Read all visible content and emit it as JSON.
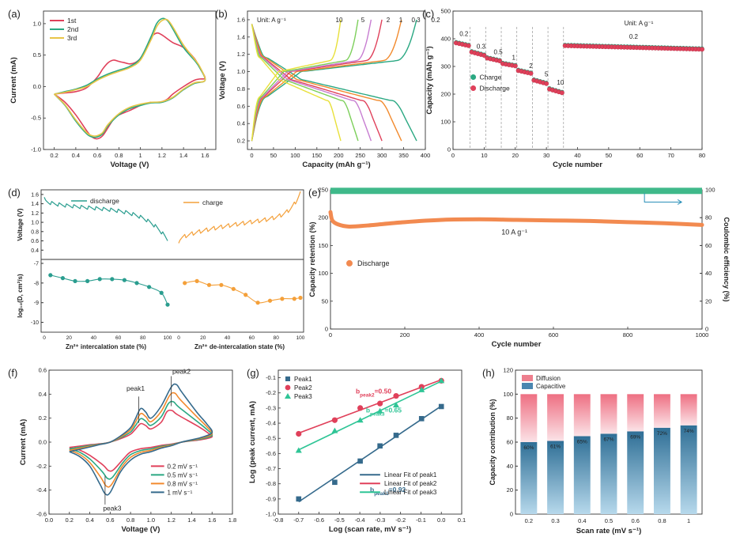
{
  "figure": {
    "panels": [
      {
        "id": "a",
        "letter": "(a)"
      },
      {
        "id": "b",
        "letter": "(b)"
      },
      {
        "id": "c",
        "letter": "(c)"
      },
      {
        "id": "d",
        "letter": "(d)"
      },
      {
        "id": "e",
        "letter": "(e)"
      },
      {
        "id": "f",
        "letter": "(f)"
      },
      {
        "id": "g",
        "letter": "(g)"
      },
      {
        "id": "h",
        "letter": "(h)"
      }
    ]
  },
  "chart_data": [
    {
      "id": "a",
      "type": "line",
      "xlabel": "Voltage (V)",
      "ylabel": "Current (mA)",
      "xlim": [
        0.1,
        1.7
      ],
      "ylim": [
        -1.0,
        1.2
      ],
      "xticks": [
        0.2,
        0.4,
        0.6,
        0.8,
        1.0,
        1.2,
        1.4,
        1.6
      ],
      "yticks": [
        -1.0,
        -0.5,
        0.0,
        0.5,
        1.0
      ],
      "legend_position": "top-left",
      "series": [
        {
          "name": "1st",
          "color": "#e0405a",
          "x": [
            0.2,
            0.3,
            0.4,
            0.5,
            0.55,
            0.6,
            0.65,
            0.7,
            0.75,
            0.8,
            0.9,
            1.0,
            1.05,
            1.1,
            1.15,
            1.2,
            1.25,
            1.3,
            1.4,
            1.5,
            1.55,
            1.6,
            1.55,
            1.5,
            1.4,
            1.3,
            1.2,
            1.15,
            1.1,
            1.05,
            1.0,
            0.95,
            0.9,
            0.85,
            0.8,
            0.75,
            0.7,
            0.65,
            0.6,
            0.5,
            0.4,
            0.3,
            0.2
          ],
          "y": [
            -0.12,
            -0.25,
            -0.45,
            -0.7,
            -0.8,
            -0.83,
            -0.78,
            -0.65,
            -0.52,
            -0.45,
            -0.38,
            -0.3,
            -0.27,
            -0.25,
            -0.25,
            -0.24,
            -0.2,
            -0.12,
            0.0,
            0.1,
            0.12,
            0.14,
            0.3,
            0.45,
            0.62,
            0.7,
            0.82,
            0.85,
            0.78,
            0.6,
            0.45,
            0.38,
            0.36,
            0.38,
            0.4,
            0.42,
            0.38,
            0.28,
            0.15,
            -0.02,
            -0.08,
            -0.1,
            -0.12
          ]
        },
        {
          "name": "2nd",
          "color": "#2aa882",
          "x": [
            0.2,
            0.3,
            0.4,
            0.5,
            0.55,
            0.6,
            0.65,
            0.7,
            0.8,
            0.9,
            1.0,
            1.1,
            1.2,
            1.3,
            1.4,
            1.5,
            1.6,
            1.55,
            1.5,
            1.4,
            1.3,
            1.25,
            1.2,
            1.15,
            1.1,
            1.0,
            0.9,
            0.8,
            0.7,
            0.6,
            0.5,
            0.4,
            0.3,
            0.2
          ],
          "y": [
            -0.12,
            -0.3,
            -0.55,
            -0.75,
            -0.8,
            -0.8,
            -0.75,
            -0.62,
            -0.45,
            -0.35,
            -0.3,
            -0.26,
            -0.25,
            -0.18,
            -0.05,
            0.05,
            0.1,
            0.3,
            0.42,
            0.62,
            0.92,
            1.05,
            1.08,
            1.0,
            0.8,
            0.45,
            0.32,
            0.26,
            0.2,
            0.12,
            0.02,
            -0.04,
            -0.08,
            -0.12
          ]
        },
        {
          "name": "3rd",
          "color": "#e8c547",
          "x": [
            0.2,
            0.3,
            0.4,
            0.5,
            0.55,
            0.6,
            0.65,
            0.7,
            0.8,
            0.9,
            1.0,
            1.1,
            1.2,
            1.3,
            1.4,
            1.5,
            1.6,
            1.55,
            1.5,
            1.4,
            1.3,
            1.25,
            1.2,
            1.15,
            1.1,
            1.0,
            0.9,
            0.8,
            0.7,
            0.6,
            0.5,
            0.4,
            0.3,
            0.2
          ],
          "y": [
            -0.12,
            -0.29,
            -0.53,
            -0.73,
            -0.78,
            -0.78,
            -0.73,
            -0.6,
            -0.43,
            -0.33,
            -0.28,
            -0.25,
            -0.24,
            -0.17,
            -0.04,
            0.06,
            0.1,
            0.32,
            0.44,
            0.66,
            0.95,
            1.06,
            1.05,
            0.95,
            0.75,
            0.42,
            0.3,
            0.24,
            0.18,
            0.1,
            0.0,
            -0.05,
            -0.09,
            -0.12
          ]
        }
      ]
    },
    {
      "id": "b",
      "type": "line",
      "xlabel": "Capacity (mAh g⁻¹)",
      "ylabel": "Voltage (V)",
      "xlim": [
        -10,
        400
      ],
      "ylim": [
        0.1,
        1.7
      ],
      "xticks": [
        0,
        50,
        100,
        150,
        200,
        250,
        300,
        350,
        400
      ],
      "yticks": [
        0.2,
        0.4,
        0.6,
        0.8,
        1.0,
        1.2,
        1.4,
        1.6
      ],
      "unit_note": "Unit: A g⁻¹",
      "rate_labels": [
        "10",
        "5",
        "2",
        "1",
        "0.3",
        "0.2"
      ],
      "series": [
        {
          "name": "0.2",
          "color": "#2aa882",
          "capacity": 380
        },
        {
          "name": "0.3",
          "color": "#f28a2e",
          "capacity": 345
        },
        {
          "name": "1",
          "color": "#e0405a",
          "capacity": 300
        },
        {
          "name": "2",
          "color": "#c77dd1",
          "capacity": 275
        },
        {
          "name": "5",
          "color": "#7ccf5a",
          "capacity": 245
        },
        {
          "name": "10",
          "color": "#e8e03a",
          "capacity": 205
        }
      ]
    },
    {
      "id": "c",
      "type": "scatter",
      "xlabel": "Cycle number",
      "ylabel": "Capacity (mAh g⁻¹)",
      "xlim": [
        0,
        80
      ],
      "ylim": [
        0,
        500
      ],
      "xticks": [
        0,
        10,
        20,
        30,
        40,
        50,
        60,
        70,
        80
      ],
      "yticks": [
        0,
        100,
        200,
        300,
        400,
        500
      ],
      "unit_note": "Unit: A g⁻¹",
      "rate_labels": [
        {
          "text": "0.2",
          "x": 3.5,
          "y": 410
        },
        {
          "text": "0.3",
          "x": 9,
          "y": 365
        },
        {
          "text": "0.5",
          "x": 14.5,
          "y": 345
        },
        {
          "text": "1",
          "x": 19.5,
          "y": 325
        },
        {
          "text": "2",
          "x": 25,
          "y": 295
        },
        {
          "text": "5",
          "x": 30,
          "y": 265
        },
        {
          "text": "10",
          "x": 34.5,
          "y": 235
        },
        {
          "text": "0.2",
          "x": 58,
          "y": 400
        }
      ],
      "dividers": [
        5.5,
        10.5,
        15.5,
        20.5,
        25.5,
        30.5,
        35.5
      ],
      "legend": [
        "Charge",
        "Discharge"
      ],
      "legend_position": "middle-left",
      "charge_color": "#2aa882",
      "discharge_color": "#e0405a",
      "segments": [
        {
          "start": 1,
          "end": 5,
          "from": 385,
          "to": 375
        },
        {
          "start": 6,
          "end": 10,
          "from": 352,
          "to": 340
        },
        {
          "start": 11,
          "end": 15,
          "from": 330,
          "to": 320
        },
        {
          "start": 16,
          "end": 20,
          "from": 310,
          "to": 302
        },
        {
          "start": 21,
          "end": 25,
          "from": 285,
          "to": 275
        },
        {
          "start": 26,
          "end": 30,
          "from": 250,
          "to": 238
        },
        {
          "start": 31,
          "end": 35,
          "from": 218,
          "to": 205
        },
        {
          "start": 36,
          "end": 80,
          "from": 375,
          "to": 362
        }
      ]
    },
    {
      "id": "d",
      "type": "line",
      "top": {
        "ylabel": "Voltage (V)",
        "ylim": [
          0.2,
          1.7
        ],
        "yticks": [
          0.4,
          0.6,
          0.8,
          1.0,
          1.2,
          1.4,
          1.6
        ],
        "legend": [
          "discharge",
          "charge"
        ],
        "discharge_color": "#2a9d8f",
        "charge_color": "#f4a03a"
      },
      "bottom": {
        "ylabel": "log₁₀(D, cm²/s)",
        "ylim": [
          -10.5,
          -6.8
        ],
        "yticks": [
          -10,
          -9,
          -8,
          -7
        ],
        "discharge": {
          "x": [
            5,
            15,
            25,
            35,
            45,
            55,
            65,
            75,
            85,
            95,
            100
          ],
          "y": [
            -7.6,
            -7.75,
            -7.9,
            -7.9,
            -7.8,
            -7.8,
            -7.85,
            -8.0,
            -8.2,
            -8.5,
            -9.1
          ]
        },
        "charge": {
          "x": [
            5,
            15,
            25,
            35,
            45,
            55,
            65,
            75,
            85,
            95,
            100
          ],
          "y": [
            -8.0,
            -7.9,
            -8.1,
            -8.1,
            -8.3,
            -8.6,
            -9.0,
            -8.9,
            -8.8,
            -8.8,
            -8.75
          ]
        }
      },
      "xlabel_left": "Zn²⁺ intercalation state (%)",
      "xlabel_right": "Zn²⁺ de-intercalation state (%)",
      "xticks": [
        0,
        20,
        40,
        60,
        80,
        100
      ]
    },
    {
      "id": "e",
      "type": "scatter",
      "xlabel": "Cycle number",
      "ylabel": "Capacity retention (%)",
      "ylabel2": "Coulombic efficiency (%)",
      "xlim": [
        0,
        1000
      ],
      "ylim": [
        0,
        250
      ],
      "ylim2": [
        0,
        100
      ],
      "xticks": [
        0,
        200,
        400,
        600,
        800,
        1000
      ],
      "yticks": [
        0,
        50,
        100,
        150,
        200,
        250
      ],
      "yticks2": [
        0,
        20,
        40,
        60,
        80,
        100
      ],
      "annotation": "10 A g⁻¹",
      "legend": [
        "Discharge"
      ],
      "legend_position": "upper-left",
      "discharge_color": "#f28a50",
      "ce_color": "#3fb98a",
      "discharge": {
        "x": [
          0,
          5,
          20,
          50,
          100,
          200,
          300,
          400,
          500,
          600,
          700,
          800,
          900,
          1000
        ],
        "y": [
          210,
          195,
          188,
          184,
          186,
          192,
          196,
          197,
          196,
          195,
          194,
          192,
          190,
          187
        ]
      },
      "ce": {
        "x": [
          0,
          1000
        ],
        "y": [
          99,
          99
        ]
      }
    },
    {
      "id": "f",
      "type": "line",
      "xlabel": "Voltage (V)",
      "ylabel": "Current (mA)",
      "xlim": [
        0,
        1.8
      ],
      "ylim": [
        -0.6,
        0.6
      ],
      "xticks": [
        0.0,
        0.2,
        0.4,
        0.6,
        0.8,
        1.0,
        1.2,
        1.4,
        1.6,
        1.8
      ],
      "yticks": [
        -0.6,
        -0.4,
        -0.2,
        0.0,
        0.2,
        0.4,
        0.6
      ],
      "annotations": [
        "peak1",
        "peak2",
        "peak3"
      ],
      "legend_position": "lower-right",
      "series": [
        {
          "name": "0.2 mV s⁻¹",
          "color": "#e0405a",
          "scale": 0.55
        },
        {
          "name": "0.5 mV s⁻¹",
          "color": "#2aa882",
          "scale": 0.7
        },
        {
          "name": "0.8 mV s⁻¹",
          "color": "#f28a2e",
          "scale": 0.85
        },
        {
          "name": "1   mV s⁻¹",
          "color": "#356a8c",
          "scale": 1.0
        }
      ]
    },
    {
      "id": "g",
      "type": "scatter",
      "xlabel": "Log (scan rate, mV s⁻¹)",
      "ylabel": "Log (peak current, mA)",
      "xlim": [
        -0.8,
        0.1
      ],
      "ylim": [
        -1.0,
        -0.05
      ],
      "xticks": [
        -0.8,
        -0.7,
        -0.6,
        -0.5,
        -0.4,
        -0.3,
        -0.2,
        -0.1,
        0.0,
        0.1
      ],
      "yticks": [
        -1.0,
        -0.9,
        -0.8,
        -0.7,
        -0.6,
        -0.5,
        -0.4,
        -0.3,
        -0.2,
        -0.1
      ],
      "legend_position": "top-left",
      "fit_legend": [
        "Linear Fit of peak1",
        "Linear Fit of peak2",
        "Linear Fit of peak3"
      ],
      "x": [
        -0.7,
        -0.523,
        -0.398,
        -0.301,
        -0.222,
        -0.097,
        0.0
      ],
      "series": [
        {
          "name": "Peak1",
          "color": "#356a8c",
          "marker": "square",
          "y": [
            -0.9,
            -0.79,
            -0.65,
            -0.55,
            -0.48,
            -0.37,
            -0.29
          ],
          "b_label": "b",
          "b_sub": "peak1",
          "b_value": "=0.92"
        },
        {
          "name": "Peak2",
          "color": "#e0405a",
          "marker": "circle",
          "y": [
            -0.47,
            -0.38,
            -0.3,
            -0.27,
            -0.22,
            -0.16,
            -0.12
          ],
          "b_label": "b",
          "b_sub": "peak2",
          "b_value": "=0.50"
        },
        {
          "name": "Peak3",
          "color": "#2fc596",
          "marker": "triangle",
          "y": [
            -0.58,
            -0.45,
            -0.38,
            -0.32,
            -0.28,
            -0.18,
            -0.12
          ],
          "b_label": "b",
          "b_sub": "peak3",
          "b_value": "=0.65"
        }
      ]
    },
    {
      "id": "h",
      "type": "bar",
      "xlabel": "Scan rate (mV s⁻¹)",
      "ylabel": "Capacity contribution (%)",
      "ylim": [
        0,
        120
      ],
      "yticks": [
        0,
        20,
        40,
        60,
        80,
        100,
        120
      ],
      "categories": [
        "0.2",
        "0.3",
        "0.4",
        "0.5",
        "0.6",
        "0.8",
        "1"
      ],
      "legend_position": "top-left",
      "series": [
        {
          "name": "Capacitive",
          "color": "#4a86b0",
          "values": [
            60,
            61,
            65,
            67,
            69,
            72,
            74
          ]
        },
        {
          "name": "Diffusion",
          "color": "#ee7f8e",
          "values": [
            40,
            39,
            35,
            33,
            31,
            28,
            26
          ]
        }
      ],
      "data_labels": [
        "60%",
        "61%",
        "65%",
        "67%",
        "69%",
        "72%",
        "74%"
      ]
    }
  ]
}
